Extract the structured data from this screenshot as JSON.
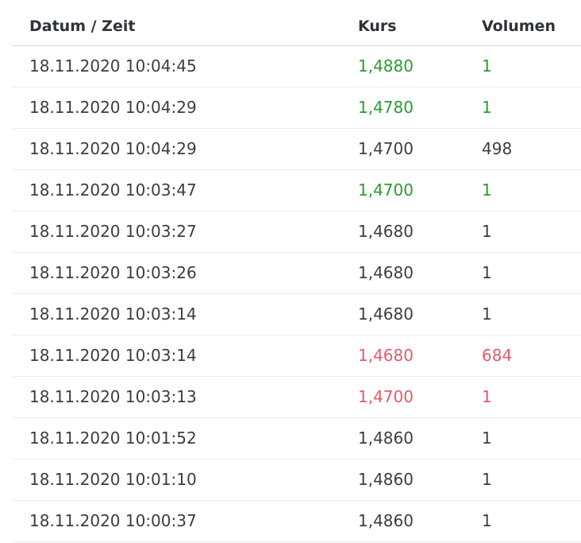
{
  "columns": {
    "datetime": "Datum / Zeit",
    "kurs": "Kurs",
    "volumen": "Volumen"
  },
  "colors": {
    "up": "#2a9c2f",
    "down": "#e35a6b",
    "neutral": "#3d3d3d"
  },
  "rows": [
    {
      "datetime": "18.11.2020  10:04:45",
      "kurs": "1,4880",
      "volumen": "1",
      "trend": "up"
    },
    {
      "datetime": "18.11.2020  10:04:29",
      "kurs": "1,4780",
      "volumen": "1",
      "trend": "up"
    },
    {
      "datetime": "18.11.2020  10:04:29",
      "kurs": "1,4700",
      "volumen": "498",
      "trend": "neutral"
    },
    {
      "datetime": "18.11.2020  10:03:47",
      "kurs": "1,4700",
      "volumen": "1",
      "trend": "up"
    },
    {
      "datetime": "18.11.2020  10:03:27",
      "kurs": "1,4680",
      "volumen": "1",
      "trend": "neutral"
    },
    {
      "datetime": "18.11.2020  10:03:26",
      "kurs": "1,4680",
      "volumen": "1",
      "trend": "neutral"
    },
    {
      "datetime": "18.11.2020  10:03:14",
      "kurs": "1,4680",
      "volumen": "1",
      "trend": "neutral"
    },
    {
      "datetime": "18.11.2020  10:03:14",
      "kurs": "1,4680",
      "volumen": "684",
      "trend": "down"
    },
    {
      "datetime": "18.11.2020  10:03:13",
      "kurs": "1,4700",
      "volumen": "1",
      "trend": "down"
    },
    {
      "datetime": "18.11.2020  10:01:52",
      "kurs": "1,4860",
      "volumen": "1",
      "trend": "neutral"
    },
    {
      "datetime": "18.11.2020  10:01:10",
      "kurs": "1,4860",
      "volumen": "1",
      "trend": "neutral"
    },
    {
      "datetime": "18.11.2020  10:00:37",
      "kurs": "1,4860",
      "volumen": "1",
      "trend": "neutral"
    }
  ]
}
